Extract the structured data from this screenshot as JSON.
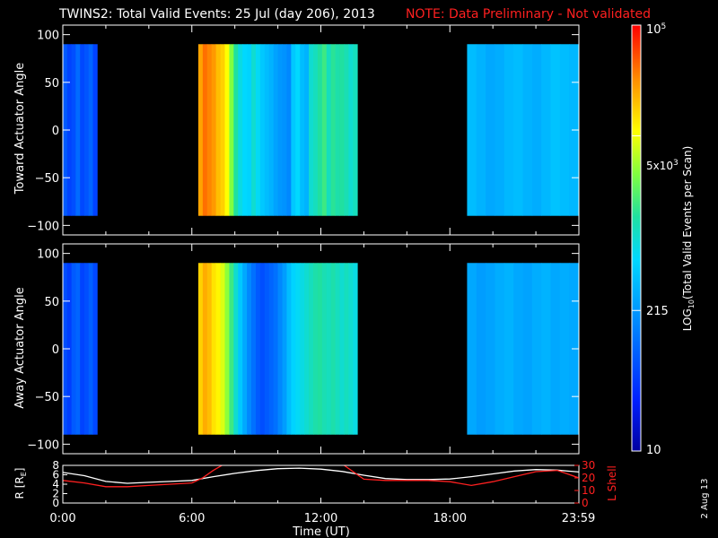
{
  "title": "TWINS2: Total Valid Events: 25 Jul (day 206), 2013",
  "note": "NOTE: Data Preliminary - Not validated",
  "date_stamp": "2 Aug 13",
  "colors": {
    "background": "#000000",
    "axis": "#ffffff",
    "note": "#ff2020",
    "r_line": "#ffffff",
    "lshell_line": "#ff2020"
  },
  "chart_data": [
    {
      "type": "heatmap",
      "ylabel": "Toward Actuator Angle",
      "ylim": [
        -110,
        110
      ],
      "yticks": [
        100,
        50,
        0,
        -50,
        -100
      ],
      "xlim": [
        0,
        24
      ],
      "data_y_range": [
        -90,
        90
      ],
      "blocks": [
        {
          "start": 0.0,
          "end": 1.6,
          "levels": [
            0.22,
            0.18,
            0.2,
            0.25,
            0.19,
            0.21,
            0.24,
            0.18
          ]
        },
        {
          "start": 6.3,
          "end": 13.7,
          "levels": [
            0.85,
            0.9,
            0.88,
            0.86,
            0.82,
            0.8,
            0.75,
            0.65,
            0.55,
            0.48,
            0.45,
            0.44,
            0.5,
            0.46,
            0.42,
            0.4,
            0.38,
            0.35,
            0.33,
            0.32,
            0.3,
            0.42,
            0.45,
            0.4,
            0.38,
            0.5,
            0.52,
            0.55,
            0.58,
            0.52,
            0.56,
            0.54,
            0.55,
            0.53,
            0.5,
            0.52
          ]
        },
        {
          "start": 18.8,
          "end": 23.98,
          "levels": [
            0.4,
            0.38,
            0.36,
            0.37,
            0.39,
            0.4,
            0.38,
            0.37,
            0.39,
            0.41,
            0.4,
            0.39
          ]
        }
      ]
    },
    {
      "type": "heatmap",
      "ylabel": "Away Actuator Angle",
      "ylim": [
        -110,
        110
      ],
      "yticks": [
        100,
        50,
        0,
        -50,
        -100
      ],
      "xlim": [
        0,
        24
      ],
      "data_y_range": [
        -90,
        90
      ],
      "blocks": [
        {
          "start": 0.0,
          "end": 1.6,
          "levels": [
            0.2,
            0.17,
            0.22,
            0.24,
            0.18,
            0.2,
            0.23,
            0.19
          ]
        },
        {
          "start": 6.3,
          "end": 13.7,
          "levels": [
            0.8,
            0.84,
            0.82,
            0.78,
            0.76,
            0.72,
            0.66,
            0.58,
            0.5,
            0.42,
            0.36,
            0.3,
            0.26,
            0.22,
            0.2,
            0.22,
            0.24,
            0.26,
            0.3,
            0.34,
            0.4,
            0.44,
            0.46,
            0.48,
            0.5,
            0.52,
            0.54,
            0.55,
            0.53,
            0.52,
            0.54,
            0.52,
            0.5,
            0.52,
            0.5,
            0.48
          ]
        },
        {
          "start": 18.8,
          "end": 23.98,
          "levels": [
            0.36,
            0.34,
            0.35,
            0.37,
            0.38,
            0.36,
            0.35,
            0.37,
            0.38,
            0.36,
            0.37,
            0.36
          ]
        }
      ]
    },
    {
      "type": "line",
      "ylabel_left": "R [RE]",
      "ylabel_left_main": "R [R",
      "ylabel_left_sub": "E",
      "ylabel_left_tail": "]",
      "ylabel_right": "L Shell",
      "xlabel": "Time (UT)",
      "xtick_labels": [
        "0:00",
        "6:00",
        "12:00",
        "18:00",
        "23:59"
      ],
      "xtick_values": [
        0,
        6,
        12,
        18,
        23.98
      ],
      "ylim_left": [
        0,
        8
      ],
      "yticks_left": [
        0,
        2,
        4,
        6,
        8
      ],
      "ylim_right": [
        0,
        30
      ],
      "yticks_right": [
        0,
        10,
        20,
        30
      ],
      "series": [
        {
          "axis": "left",
          "x": [
            0,
            1,
            2,
            3,
            4,
            5,
            6,
            7,
            8,
            9,
            10,
            11,
            12,
            13,
            14,
            15,
            16,
            17,
            18,
            19,
            20,
            21,
            22,
            23,
            24
          ],
          "y": [
            6.5,
            5.8,
            4.6,
            4.2,
            4.4,
            4.6,
            4.8,
            5.6,
            6.3,
            6.9,
            7.3,
            7.4,
            7.2,
            6.7,
            5.9,
            5.2,
            5.0,
            5.0,
            5.1,
            5.6,
            6.2,
            6.8,
            7.1,
            7.0,
            6.6
          ]
        },
        {
          "axis": "right",
          "x": [
            0,
            1,
            2,
            3,
            4,
            5,
            6,
            6.5,
            7,
            7.5,
            8,
            12.5,
            13,
            13.5,
            14,
            15,
            16,
            17,
            18,
            19,
            20,
            21,
            22,
            23,
            24
          ],
          "y": [
            18,
            16,
            13,
            13,
            14,
            15,
            16,
            20,
            26,
            31,
            34,
            34,
            31,
            25,
            19,
            18,
            18,
            18,
            17,
            14,
            17,
            21,
            25,
            26,
            20
          ]
        }
      ]
    }
  ],
  "colorbar": {
    "label": "LOG10(Total Valid Events per Scan)",
    "label_main_1": "LOG",
    "label_sub": "10",
    "label_main_2": "(Total Valid Events per Scan)",
    "tick_top_base": "10",
    "tick_top_exp": "5",
    "tick_mid_base": "5x10",
    "tick_mid_exp": "3",
    "tick_low": "215",
    "tick_bottom": "10",
    "tick_levels": [
      1.0,
      0.74,
      0.33,
      0.0
    ]
  }
}
